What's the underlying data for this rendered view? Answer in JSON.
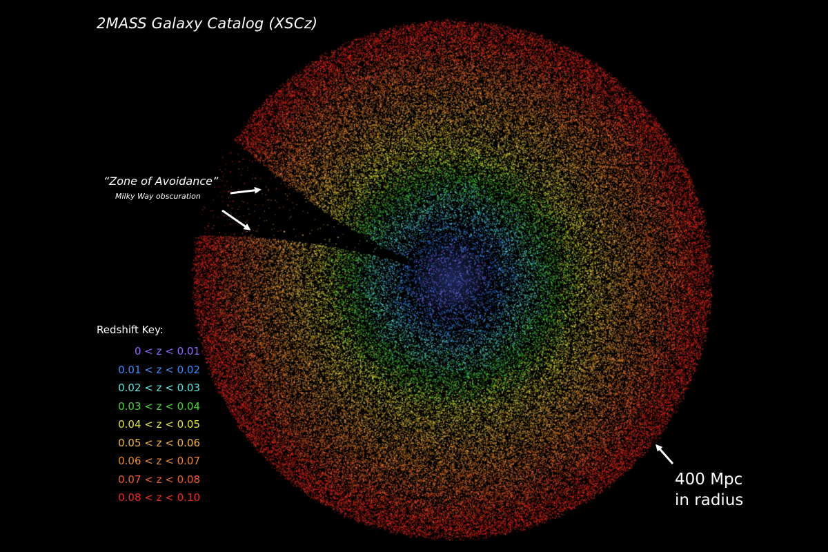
{
  "title": "2MASS Galaxy Catalog (XSCz)",
  "annotations": {
    "zone_title": "“Zone of Avoidance”",
    "zone_subtitle": "Milky Way obscuration",
    "radius_line1": "400 Mpc",
    "radius_line2": "in radius"
  },
  "redshift_key": {
    "title": "Redshift Key:",
    "items": [
      {
        "label": "0 < z < 0.01",
        "color": "#8f6bff"
      },
      {
        "label": "0.01 < z < 0.02",
        "color": "#3d8cff"
      },
      {
        "label": "0.02 < z < 0.03",
        "color": "#5ae6e0"
      },
      {
        "label": "0.03 < z < 0.04",
        "color": "#4fd43a"
      },
      {
        "label": "0.04 < z < 0.05",
        "color": "#e6e63a"
      },
      {
        "label": "0.05 < z < 0.06",
        "color": "#f0b53c"
      },
      {
        "label": "0.06 < z < 0.07",
        "color": "#f08a30"
      },
      {
        "label": "0.07 < z < 0.08",
        "color": "#f0602a"
      },
      {
        "label": "0.08 < z < 0.10",
        "color": "#f02a1e"
      }
    ]
  }
}
